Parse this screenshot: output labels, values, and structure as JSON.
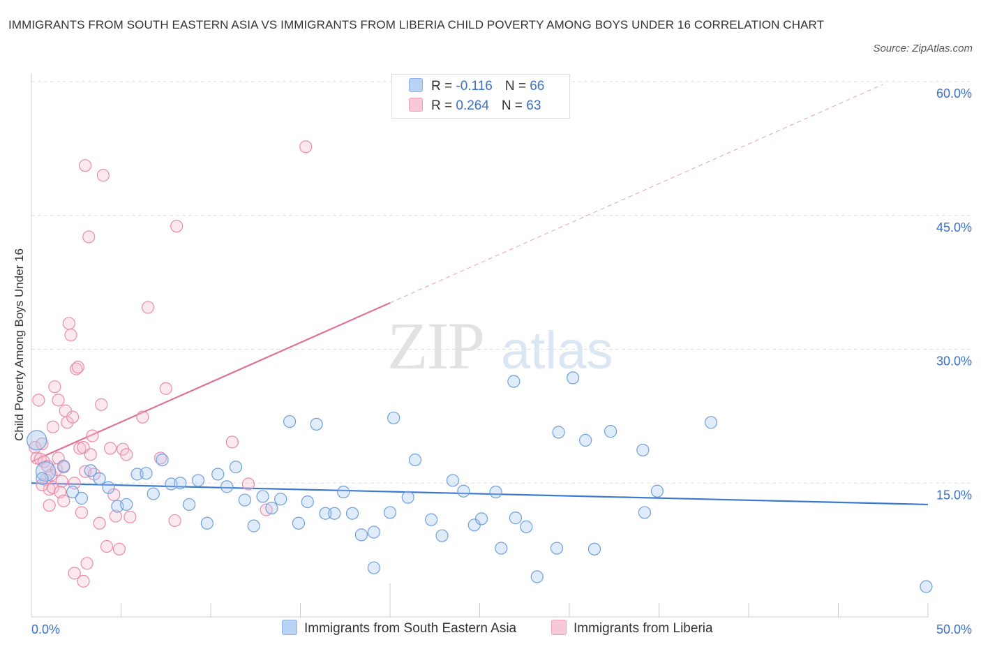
{
  "title": "IMMIGRANTS FROM SOUTH EASTERN ASIA VS IMMIGRANTS FROM LIBERIA CHILD POVERTY AMONG BOYS UNDER 16 CORRELATION CHART",
  "source": "Source: ZipAtlas.com",
  "watermark": {
    "zip": "ZIP",
    "atlas": "atlas"
  },
  "legend_top": {
    "rows": [
      {
        "r_label": "R = ",
        "r_value": "-0.116",
        "n_label": "N = ",
        "n_value": "66"
      },
      {
        "r_label": "R = ",
        "r_value": "0.264",
        "n_label": "N = ",
        "n_value": "63"
      }
    ]
  },
  "colors": {
    "blue_fill": "#a9c8f0",
    "blue_stroke": "#6d9fdd",
    "blue_line": "#3a78d2",
    "pink_fill": "#f7bfd0",
    "pink_stroke": "#e98aa8",
    "pink_line": "#e0709a",
    "tick_label": "#3b70c6",
    "grid": "#dddddd"
  },
  "chart_data": {
    "type": "scatter",
    "title": "IMMIGRANTS FROM SOUTH EASTERN ASIA VS IMMIGRANTS FROM LIBERIA CHILD POVERTY AMONG BOYS UNDER 16 CORRELATION CHART",
    "xlabel": "",
    "ylabel": "Child Poverty Among Boys Under 16",
    "xlim": [
      0,
      50
    ],
    "ylim": [
      0,
      60
    ],
    "x_tick_labels": [
      {
        "value": 0,
        "label": "0.0%"
      },
      {
        "value": 50,
        "label": "50.0%"
      }
    ],
    "y_tick_labels": [
      {
        "value": 15,
        "label": "15.0%"
      },
      {
        "value": 30,
        "label": "30.0%"
      },
      {
        "value": 45,
        "label": "45.0%"
      },
      {
        "value": 60,
        "label": "60.0%"
      }
    ],
    "grid": true,
    "series": [
      {
        "name": "Immigrants from South Eastern Asia",
        "color": "blue",
        "trend": {
          "x": [
            0,
            50
          ],
          "y": [
            15.0,
            12.6
          ],
          "style": "solid"
        },
        "points": [
          {
            "x": 0.3,
            "y": 19.8,
            "big": true
          },
          {
            "x": 0.8,
            "y": 16.3,
            "big": true
          },
          {
            "x": 1.8,
            "y": 16.9
          },
          {
            "x": 2.3,
            "y": 14.0
          },
          {
            "x": 2.8,
            "y": 13.3
          },
          {
            "x": 3.3,
            "y": 16.4
          },
          {
            "x": 3.8,
            "y": 15.5
          },
          {
            "x": 4.3,
            "y": 14.5
          },
          {
            "x": 4.8,
            "y": 12.4
          },
          {
            "x": 5.3,
            "y": 12.6
          },
          {
            "x": 5.9,
            "y": 16.0
          },
          {
            "x": 6.4,
            "y": 16.1
          },
          {
            "x": 6.8,
            "y": 13.8
          },
          {
            "x": 7.3,
            "y": 17.6
          },
          {
            "x": 7.8,
            "y": 14.9
          },
          {
            "x": 8.3,
            "y": 15.0
          },
          {
            "x": 8.8,
            "y": 12.6
          },
          {
            "x": 9.3,
            "y": 15.3
          },
          {
            "x": 9.8,
            "y": 10.5
          },
          {
            "x": 10.4,
            "y": 16.0
          },
          {
            "x": 10.9,
            "y": 14.6
          },
          {
            "x": 11.4,
            "y": 16.8
          },
          {
            "x": 11.9,
            "y": 13.1
          },
          {
            "x": 12.4,
            "y": 10.2
          },
          {
            "x": 12.9,
            "y": 13.5
          },
          {
            "x": 13.4,
            "y": 12.2
          },
          {
            "x": 13.9,
            "y": 13.2
          },
          {
            "x": 14.4,
            "y": 21.9
          },
          {
            "x": 14.9,
            "y": 10.5
          },
          {
            "x": 15.4,
            "y": 12.9
          },
          {
            "x": 15.9,
            "y": 21.6
          },
          {
            "x": 16.4,
            "y": 11.6
          },
          {
            "x": 16.9,
            "y": 11.6
          },
          {
            "x": 17.4,
            "y": 14.0
          },
          {
            "x": 17.9,
            "y": 11.6
          },
          {
            "x": 18.4,
            "y": 9.2
          },
          {
            "x": 19.1,
            "y": 9.5
          },
          {
            "x": 19.1,
            "y": 5.5
          },
          {
            "x": 20.0,
            "y": 11.7
          },
          {
            "x": 20.2,
            "y": 22.3
          },
          {
            "x": 21.0,
            "y": 13.4
          },
          {
            "x": 21.4,
            "y": 17.6
          },
          {
            "x": 22.3,
            "y": 10.9
          },
          {
            "x": 22.9,
            "y": 9.1
          },
          {
            "x": 23.5,
            "y": 15.3
          },
          {
            "x": 24.1,
            "y": 14.1
          },
          {
            "x": 24.7,
            "y": 10.3
          },
          {
            "x": 25.1,
            "y": 11.0
          },
          {
            "x": 25.9,
            "y": 14.0
          },
          {
            "x": 26.2,
            "y": 7.7
          },
          {
            "x": 26.9,
            "y": 26.4
          },
          {
            "x": 27.0,
            "y": 11.1
          },
          {
            "x": 27.6,
            "y": 10.1
          },
          {
            "x": 28.2,
            "y": 4.5
          },
          {
            "x": 29.3,
            "y": 7.7
          },
          {
            "x": 29.4,
            "y": 20.7
          },
          {
            "x": 30.2,
            "y": 26.8
          },
          {
            "x": 30.9,
            "y": 19.8
          },
          {
            "x": 31.4,
            "y": 7.6
          },
          {
            "x": 32.3,
            "y": 20.8
          },
          {
            "x": 34.1,
            "y": 18.7
          },
          {
            "x": 34.2,
            "y": 11.7
          },
          {
            "x": 34.9,
            "y": 14.1
          },
          {
            "x": 37.9,
            "y": 21.8
          },
          {
            "x": 49.9,
            "y": 3.4
          },
          {
            "x": 0.6,
            "y": 15.5
          }
        ]
      },
      {
        "name": "Immigrants from Liberia",
        "color": "pink",
        "trend": {
          "x": [
            0,
            20
          ],
          "y": [
            17.4,
            35.2
          ],
          "style": "solid",
          "extended_x": [
            20,
            47.5
          ],
          "extended_y": [
            35.2,
            59.7
          ],
          "extended_style": "dashed"
        },
        "points": [
          {
            "x": 0.2,
            "y": 19.0
          },
          {
            "x": 0.3,
            "y": 17.8
          },
          {
            "x": 0.4,
            "y": 24.3
          },
          {
            "x": 0.5,
            "y": 17.7
          },
          {
            "x": 0.6,
            "y": 19.4
          },
          {
            "x": 0.7,
            "y": 17.4
          },
          {
            "x": 0.8,
            "y": 15.4
          },
          {
            "x": 0.9,
            "y": 16.9
          },
          {
            "x": 1.0,
            "y": 14.3
          },
          {
            "x": 1.0,
            "y": 12.5
          },
          {
            "x": 1.1,
            "y": 15.9
          },
          {
            "x": 1.2,
            "y": 14.5
          },
          {
            "x": 1.2,
            "y": 21.3
          },
          {
            "x": 1.3,
            "y": 25.8
          },
          {
            "x": 1.4,
            "y": 16.5
          },
          {
            "x": 1.5,
            "y": 17.8
          },
          {
            "x": 1.5,
            "y": 24.3
          },
          {
            "x": 1.6,
            "y": 14.0
          },
          {
            "x": 1.7,
            "y": 15.2
          },
          {
            "x": 1.8,
            "y": 13.0
          },
          {
            "x": 1.8,
            "y": 16.8
          },
          {
            "x": 1.9,
            "y": 23.1
          },
          {
            "x": 2.0,
            "y": 21.8
          },
          {
            "x": 2.1,
            "y": 32.9
          },
          {
            "x": 2.2,
            "y": 31.6
          },
          {
            "x": 2.3,
            "y": 22.4
          },
          {
            "x": 2.4,
            "y": 15.0
          },
          {
            "x": 2.4,
            "y": 4.9
          },
          {
            "x": 2.5,
            "y": 27.8
          },
          {
            "x": 2.6,
            "y": 28.0
          },
          {
            "x": 2.7,
            "y": 18.9
          },
          {
            "x": 2.8,
            "y": 11.7
          },
          {
            "x": 2.9,
            "y": 19.0
          },
          {
            "x": 2.9,
            "y": 4.0
          },
          {
            "x": 3.0,
            "y": 50.6
          },
          {
            "x": 3.0,
            "y": 16.3
          },
          {
            "x": 3.1,
            "y": 6.0
          },
          {
            "x": 3.2,
            "y": 42.6
          },
          {
            "x": 3.3,
            "y": 18.2
          },
          {
            "x": 3.4,
            "y": 20.3
          },
          {
            "x": 3.5,
            "y": 16.0
          },
          {
            "x": 3.8,
            "y": 10.5
          },
          {
            "x": 3.9,
            "y": 23.8
          },
          {
            "x": 4.0,
            "y": 49.5
          },
          {
            "x": 4.2,
            "y": 7.9
          },
          {
            "x": 4.4,
            "y": 18.9
          },
          {
            "x": 4.6,
            "y": 13.7
          },
          {
            "x": 4.7,
            "y": 11.3
          },
          {
            "x": 4.9,
            "y": 7.6
          },
          {
            "x": 5.1,
            "y": 18.8
          },
          {
            "x": 5.3,
            "y": 18.2
          },
          {
            "x": 5.5,
            "y": 11.2
          },
          {
            "x": 6.2,
            "y": 22.4
          },
          {
            "x": 6.5,
            "y": 34.7
          },
          {
            "x": 7.2,
            "y": 17.8
          },
          {
            "x": 7.5,
            "y": 25.6
          },
          {
            "x": 8.0,
            "y": 10.8
          },
          {
            "x": 8.1,
            "y": 43.8
          },
          {
            "x": 11.2,
            "y": 19.6
          },
          {
            "x": 12.1,
            "y": 14.9
          },
          {
            "x": 13.1,
            "y": 12.0
          },
          {
            "x": 15.3,
            "y": 52.7
          },
          {
            "x": 0.6,
            "y": 14.8
          }
        ]
      }
    ]
  },
  "bottom_legend": {
    "items": [
      {
        "label": "Immigrants from South Eastern Asia"
      },
      {
        "label": "Immigrants from Liberia"
      }
    ]
  }
}
